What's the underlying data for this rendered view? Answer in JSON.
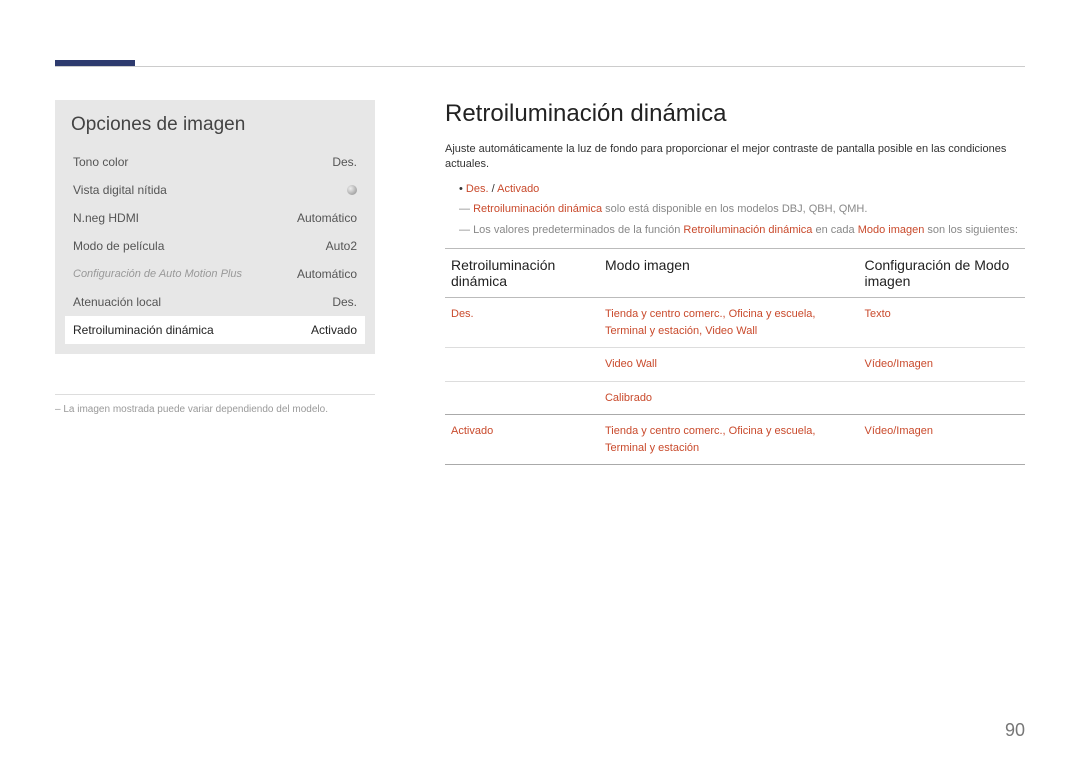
{
  "colors": {
    "accentBar": "#2d3a6e",
    "highlight": "#c94a2c",
    "panelBg": "#e7e7e7",
    "text": "#333333",
    "muted": "#999999",
    "lineLight": "#dddddd",
    "lineDark": "#bbbbbb"
  },
  "sidebar": {
    "title": "Opciones de imagen",
    "items": [
      {
        "label": "Tono color",
        "value": "Des."
      },
      {
        "label": "Vista digital nítida",
        "value": ""
      },
      {
        "label": "N.neg HDMI",
        "value": "Automático"
      },
      {
        "label": "Modo de película",
        "value": "Auto2"
      },
      {
        "label": "Configuración de Auto Motion Plus",
        "value": "Automático"
      },
      {
        "label": "Atenuación local",
        "value": "Des."
      },
      {
        "label": "Retroiluminación dinámica",
        "value": "Activado"
      }
    ],
    "footnotePrefix": "–",
    "footnote": "La imagen mostrada puede variar dependiendo del modelo."
  },
  "main": {
    "title": "Retroiluminación dinámica",
    "description": "Ajuste automáticamente la luz de fondo para proporcionar el mejor contraste de pantalla posible en las condiciones actuales.",
    "bullet1": {
      "hl": "Des.",
      "sep": " / ",
      "hl2": "Activado"
    },
    "note1": {
      "hl": "Retroiluminación dinámica",
      "rest": " solo está disponible en los modelos DBJ, QBH, QMH."
    },
    "note2": {
      "pre": "Los valores predeterminados de la función ",
      "hl": "Retroiluminación dinámica",
      "mid": " en cada ",
      "hl2": "Modo imagen",
      "post": " son los siguientes:"
    },
    "table": {
      "headers": [
        "Retroiluminación dinámica",
        "Modo imagen",
        "Configuración de Modo imagen"
      ],
      "rows": [
        {
          "col1": "Des.",
          "col2": "Tienda y centro comerc., Oficina y escuela, Terminal y estación, Video Wall",
          "col3": "Texto"
        },
        {
          "col1": "",
          "col2": "Video Wall",
          "col3": "Vídeo/Imagen"
        },
        {
          "col1": "",
          "col2": "Calibrado",
          "col3": ""
        },
        {
          "col1": "Activado",
          "col2": "Tienda y centro comerc., Oficina y escuela, Terminal y estación",
          "col3": "Vídeo/Imagen"
        }
      ]
    }
  },
  "pageNumber": "90"
}
